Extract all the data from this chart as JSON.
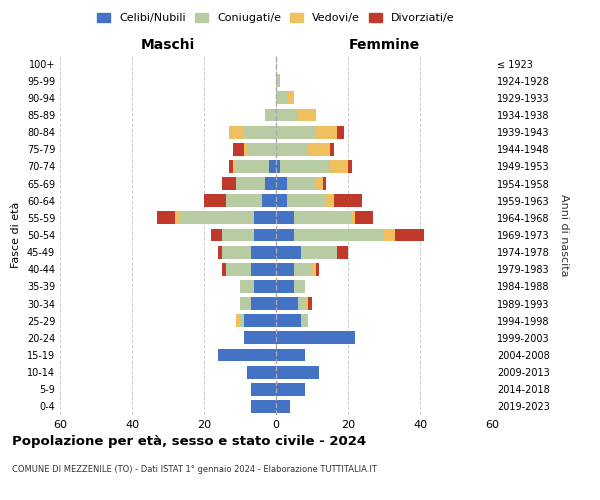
{
  "age_groups": [
    "0-4",
    "5-9",
    "10-14",
    "15-19",
    "20-24",
    "25-29",
    "30-34",
    "35-39",
    "40-44",
    "45-49",
    "50-54",
    "55-59",
    "60-64",
    "65-69",
    "70-74",
    "75-79",
    "80-84",
    "85-89",
    "90-94",
    "95-99",
    "100+"
  ],
  "birth_years": [
    "2019-2023",
    "2014-2018",
    "2009-2013",
    "2004-2008",
    "1999-2003",
    "1994-1998",
    "1989-1993",
    "1984-1988",
    "1979-1983",
    "1974-1978",
    "1969-1973",
    "1964-1968",
    "1959-1963",
    "1954-1958",
    "1949-1953",
    "1944-1948",
    "1939-1943",
    "1934-1938",
    "1929-1933",
    "1924-1928",
    "≤ 1923"
  ],
  "colors": {
    "celibi": "#4472c4",
    "coniugati": "#b8cca4",
    "vedovi": "#f0c060",
    "divorziati": "#c0392b"
  },
  "maschi": {
    "celibi": [
      7,
      7,
      8,
      16,
      9,
      9,
      7,
      6,
      7,
      7,
      6,
      6,
      4,
      3,
      2,
      0,
      0,
      0,
      0,
      0,
      0
    ],
    "coniugati": [
      0,
      0,
      0,
      0,
      0,
      1,
      3,
      4,
      7,
      8,
      9,
      21,
      10,
      8,
      9,
      8,
      9,
      3,
      0,
      0,
      0
    ],
    "vedovi": [
      0,
      0,
      0,
      0,
      0,
      1,
      0,
      0,
      0,
      0,
      0,
      1,
      0,
      0,
      1,
      1,
      4,
      0,
      0,
      0,
      0
    ],
    "divorziati": [
      0,
      0,
      0,
      0,
      0,
      0,
      0,
      0,
      1,
      1,
      3,
      5,
      6,
      4,
      1,
      3,
      0,
      0,
      0,
      0,
      0
    ]
  },
  "femmine": {
    "celibi": [
      4,
      8,
      12,
      8,
      22,
      7,
      6,
      5,
      5,
      7,
      5,
      5,
      3,
      3,
      1,
      0,
      0,
      0,
      0,
      0,
      0
    ],
    "coniugati": [
      0,
      0,
      0,
      0,
      0,
      2,
      2,
      3,
      5,
      10,
      25,
      16,
      11,
      8,
      14,
      9,
      11,
      6,
      3,
      1,
      0
    ],
    "vedovi": [
      0,
      0,
      0,
      0,
      0,
      0,
      1,
      0,
      1,
      0,
      3,
      1,
      2,
      2,
      5,
      6,
      6,
      5,
      2,
      0,
      0
    ],
    "divorziati": [
      0,
      0,
      0,
      0,
      0,
      0,
      1,
      0,
      1,
      3,
      8,
      5,
      8,
      1,
      1,
      1,
      2,
      0,
      0,
      0,
      0
    ]
  },
  "title": "Popolazione per età, sesso e stato civile - 2024",
  "subtitle": "COMUNE DI MEZZENILE (TO) - Dati ISTAT 1° gennaio 2024 - Elaborazione TUTTITALIA.IT",
  "xlabel_left": "Maschi",
  "xlabel_right": "Femmine",
  "ylabel_left": "Fasce di età",
  "ylabel_right": "Anni di nascita",
  "xlim": 60,
  "legend_labels": [
    "Celibi/Nubili",
    "Coniugati/e",
    "Vedovi/e",
    "Divorziati/e"
  ]
}
